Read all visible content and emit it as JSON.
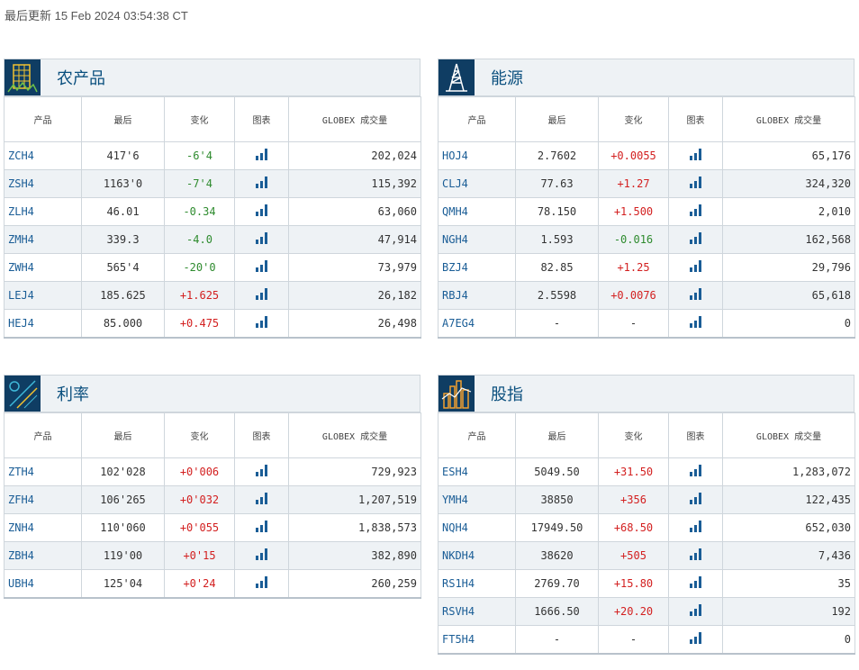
{
  "last_updated": "最后更新 15 Feb 2024 03:54:38 CT",
  "columns": {
    "product": "产品",
    "last": "最后",
    "change": "变化",
    "chart": "图表",
    "volume": "GLOBEX 成交量"
  },
  "colors": {
    "positive": "#d32020",
    "negative": "#2e8b2e",
    "link": "#1a5d96",
    "header_bg": "#eef2f5",
    "icon_bg": "#0f3d63",
    "chart_icon": "#1a5d96"
  },
  "panels": [
    {
      "id": "ag",
      "title": "农产品",
      "icon": "wheat-icon",
      "rows": [
        {
          "code": "ZCH4",
          "last": "417'6",
          "change": "-6'4",
          "dir": "neg",
          "volume": "202,024"
        },
        {
          "code": "ZSH4",
          "last": "1163'0",
          "change": "-7'4",
          "dir": "neg",
          "volume": "115,392"
        },
        {
          "code": "ZLH4",
          "last": "46.01",
          "change": "-0.34",
          "dir": "neg",
          "volume": "63,060"
        },
        {
          "code": "ZMH4",
          "last": "339.3",
          "change": "-4.0",
          "dir": "neg",
          "volume": "47,914"
        },
        {
          "code": "ZWH4",
          "last": "565'4",
          "change": "-20'0",
          "dir": "neg",
          "volume": "73,979"
        },
        {
          "code": "LEJ4",
          "last": "185.625",
          "change": "+1.625",
          "dir": "pos",
          "volume": "26,182"
        },
        {
          "code": "HEJ4",
          "last": "85.000",
          "change": "+0.475",
          "dir": "pos",
          "volume": "26,498"
        }
      ]
    },
    {
      "id": "en",
      "title": "能源",
      "icon": "oil-rig-icon",
      "rows": [
        {
          "code": "HOJ4",
          "last": "2.7602",
          "change": "+0.0055",
          "dir": "pos",
          "volume": "65,176"
        },
        {
          "code": "CLJ4",
          "last": "77.63",
          "change": "+1.27",
          "dir": "pos",
          "volume": "324,320"
        },
        {
          "code": "QMH4",
          "last": "78.150",
          "change": "+1.500",
          "dir": "pos",
          "volume": "2,010"
        },
        {
          "code": "NGH4",
          "last": "1.593",
          "change": "-0.016",
          "dir": "neg",
          "volume": "162,568"
        },
        {
          "code": "BZJ4",
          "last": "82.85",
          "change": "+1.25",
          "dir": "pos",
          "volume": "29,796"
        },
        {
          "code": "RBJ4",
          "last": "2.5598",
          "change": "+0.0076",
          "dir": "pos",
          "volume": "65,618"
        },
        {
          "code": "A7EG4",
          "last": "-",
          "change": "-",
          "dir": "flat",
          "volume": "0"
        }
      ]
    },
    {
      "id": "ir",
      "title": "利率",
      "icon": "interest-rate-icon",
      "rows": [
        {
          "code": "ZTH4",
          "last": "102'028",
          "change": "+0'006",
          "dir": "pos",
          "volume": "729,923"
        },
        {
          "code": "ZFH4",
          "last": "106'265",
          "change": "+0'032",
          "dir": "pos",
          "volume": "1,207,519"
        },
        {
          "code": "ZNH4",
          "last": "110'060",
          "change": "+0'055",
          "dir": "pos",
          "volume": "1,838,573"
        },
        {
          "code": "ZBH4",
          "last": "119'00",
          "change": "+0'15",
          "dir": "pos",
          "volume": "382,890"
        },
        {
          "code": "UBH4",
          "last": "125'04",
          "change": "+0'24",
          "dir": "pos",
          "volume": "260,259"
        }
      ]
    },
    {
      "id": "eq",
      "title": "股指",
      "icon": "skyline-chart-icon",
      "rows": [
        {
          "code": "ESH4",
          "last": "5049.50",
          "change": "+31.50",
          "dir": "pos",
          "volume": "1,283,072"
        },
        {
          "code": "YMH4",
          "last": "38850",
          "change": "+356",
          "dir": "pos",
          "volume": "122,435"
        },
        {
          "code": "NQH4",
          "last": "17949.50",
          "change": "+68.50",
          "dir": "pos",
          "volume": "652,030"
        },
        {
          "code": "NKDH4",
          "last": "38620",
          "change": "+505",
          "dir": "pos",
          "volume": "7,436"
        },
        {
          "code": "RS1H4",
          "last": "2769.70",
          "change": "+15.80",
          "dir": "pos",
          "volume": "35"
        },
        {
          "code": "RSVH4",
          "last": "1666.50",
          "change": "+20.20",
          "dir": "pos",
          "volume": "192"
        },
        {
          "code": "FT5H4",
          "last": "-",
          "change": "-",
          "dir": "flat",
          "volume": "0"
        }
      ]
    }
  ]
}
